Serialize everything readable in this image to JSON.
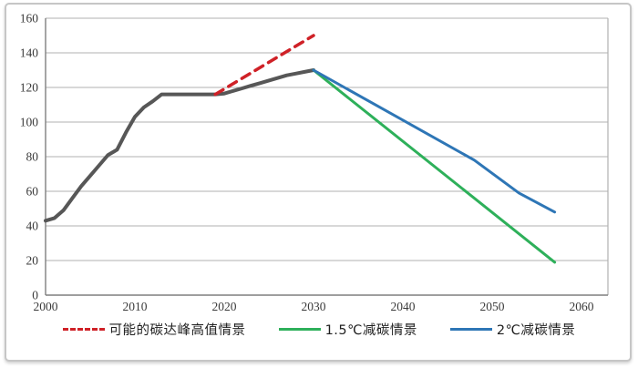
{
  "chart_data": {
    "type": "line",
    "title": "",
    "xlabel": "",
    "ylabel": "",
    "x_axis": {
      "min": 2000,
      "max": 2063,
      "ticks": [
        2000,
        2010,
        2020,
        2030,
        2040,
        2050,
        2060
      ]
    },
    "y_axis": {
      "min": 0,
      "max": 160,
      "tick_step": 20,
      "ticks": [
        0,
        20,
        40,
        60,
        80,
        100,
        120,
        140,
        160
      ]
    },
    "grid": "horizontal",
    "legend_position": "bottom",
    "series": [
      {
        "id": "historical-emissions",
        "legend_label": "",
        "show_in_legend": false,
        "color": "#575757",
        "line_style": "solid",
        "line_width": 4,
        "points": [
          [
            2000,
            43
          ],
          [
            2001,
            44.5
          ],
          [
            2002,
            49
          ],
          [
            2003,
            56
          ],
          [
            2004,
            63
          ],
          [
            2005,
            69
          ],
          [
            2006,
            75
          ],
          [
            2007,
            81
          ],
          [
            2008,
            84
          ],
          [
            2009,
            94
          ],
          [
            2010,
            103
          ],
          [
            2011,
            108.5
          ],
          [
            2012,
            112
          ],
          [
            2013,
            116
          ],
          [
            2014,
            116
          ],
          [
            2015,
            116
          ],
          [
            2016,
            116
          ],
          [
            2017,
            116
          ],
          [
            2018,
            116
          ],
          [
            2019,
            116
          ],
          [
            2020,
            116.5
          ],
          [
            2021,
            118
          ],
          [
            2022,
            119.5
          ],
          [
            2023,
            121
          ],
          [
            2024,
            122.5
          ],
          [
            2025,
            124
          ],
          [
            2026,
            125.5
          ],
          [
            2027,
            127
          ],
          [
            2028,
            128
          ],
          [
            2029,
            129
          ],
          [
            2030,
            130
          ]
        ]
      },
      {
        "id": "peak-high-scenario",
        "legend_label": "可能的碳达峰高值情景",
        "show_in_legend": true,
        "color": "#cf2127",
        "line_style": "dashed",
        "line_width": 3.5,
        "points": [
          [
            2019,
            116
          ],
          [
            2030,
            150
          ]
        ]
      },
      {
        "id": "scenario-1p5c",
        "legend_label": "1.5℃减碳情景",
        "show_in_legend": true,
        "color": "#2eb05a",
        "line_style": "solid",
        "line_width": 3,
        "points": [
          [
            2030,
            130
          ],
          [
            2057,
            19
          ]
        ]
      },
      {
        "id": "scenario-2c",
        "legend_label": "2℃减碳情景",
        "show_in_legend": true,
        "color": "#2e76b6",
        "line_style": "solid",
        "line_width": 3,
        "points": [
          [
            2030,
            130
          ],
          [
            2048,
            78
          ],
          [
            2053,
            59
          ],
          [
            2057,
            48
          ]
        ]
      }
    ]
  }
}
